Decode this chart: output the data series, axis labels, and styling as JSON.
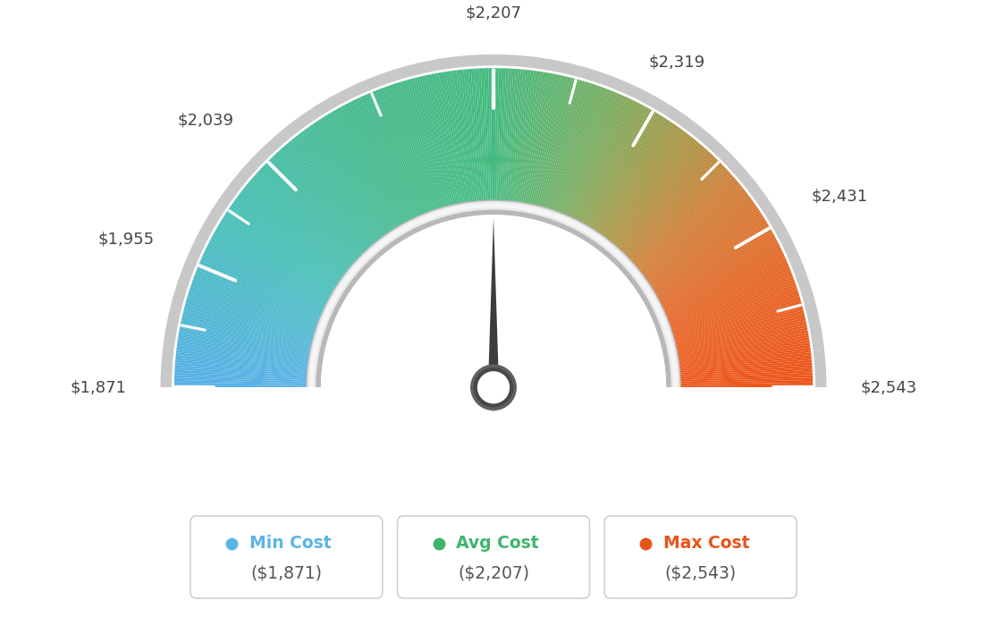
{
  "min_val": 1871,
  "avg_val": 2207,
  "max_val": 2543,
  "tick_labels": [
    "$1,871",
    "$1,955",
    "$2,039",
    "$2,207",
    "$2,319",
    "$2,431",
    "$2,543"
  ],
  "tick_values": [
    1871,
    1955,
    2039,
    2207,
    2319,
    2431,
    2543
  ],
  "legend": [
    {
      "label": "Min Cost",
      "value": "($1,871)",
      "color": "#5ab4e5"
    },
    {
      "label": "Avg Cost",
      "value": "($2,207)",
      "color": "#3db56c"
    },
    {
      "label": "Max Cost",
      "value": "($2,543)",
      "color": "#e8541a"
    }
  ],
  "background_color": "#ffffff",
  "color_stops": [
    [
      0.0,
      [
        0.34,
        0.69,
        0.91
      ]
    ],
    [
      0.18,
      [
        0.28,
        0.75,
        0.72
      ]
    ],
    [
      0.35,
      [
        0.27,
        0.73,
        0.55
      ]
    ],
    [
      0.5,
      [
        0.27,
        0.73,
        0.5
      ]
    ],
    [
      0.62,
      [
        0.47,
        0.68,
        0.38
      ]
    ],
    [
      0.7,
      [
        0.65,
        0.6,
        0.28
      ]
    ],
    [
      0.78,
      [
        0.82,
        0.5,
        0.22
      ]
    ],
    [
      0.88,
      [
        0.9,
        0.4,
        0.15
      ]
    ],
    [
      1.0,
      [
        0.93,
        0.33,
        0.1
      ]
    ]
  ]
}
